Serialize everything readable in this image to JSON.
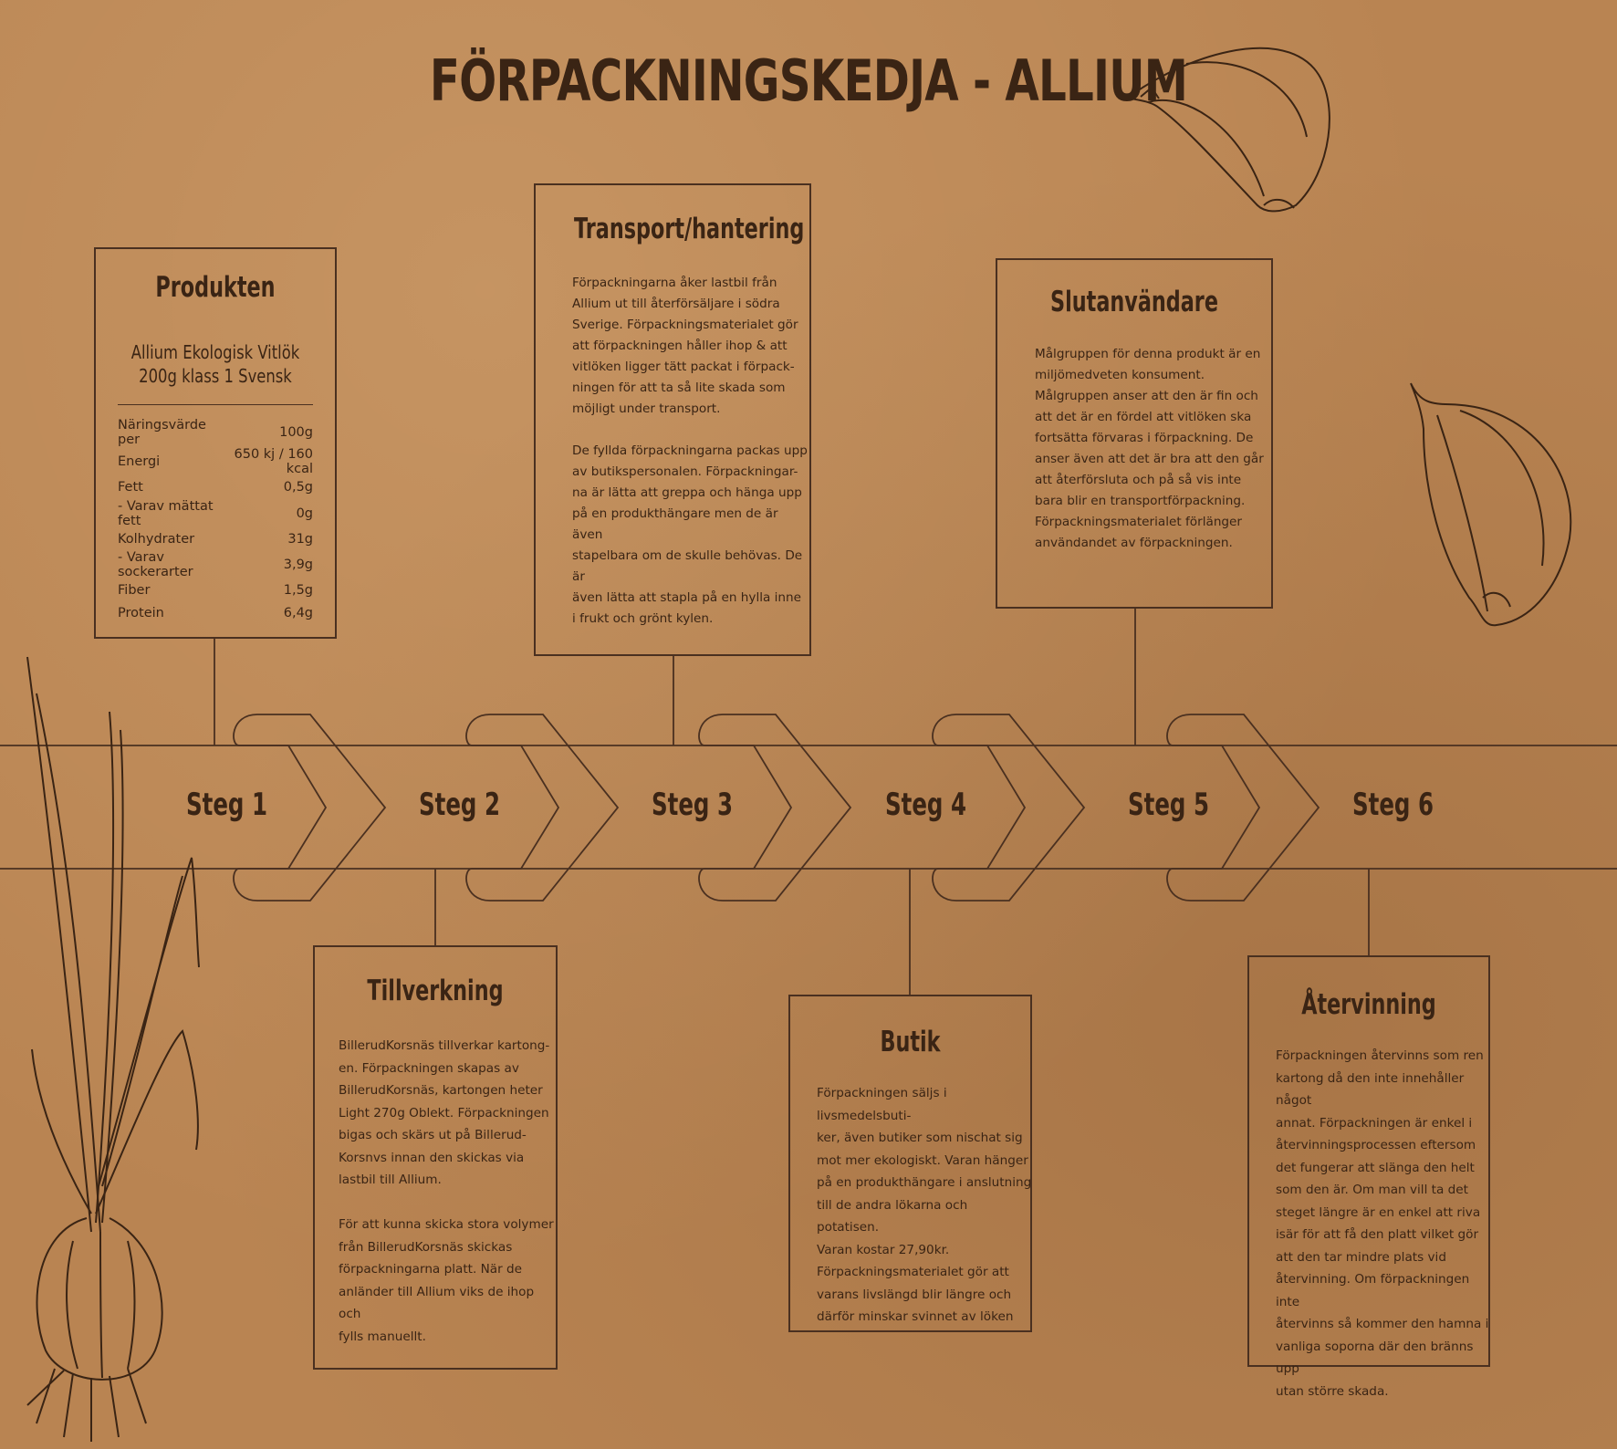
{
  "title": "FÖRPACKNINGSKEDJA - ALLIUM",
  "steps": [
    "Steg 1",
    "Steg 2",
    "Steg 3",
    "Steg 4",
    "Steg 5",
    "Steg 6"
  ],
  "produkten": {
    "heading": "Produkten",
    "product_name_line1": "Allium Ekologisk Vitlök",
    "product_name_line2": "200g klass 1 Svensk",
    "nutrition_header": {
      "label": "Näringsvärde per",
      "value": "100g"
    },
    "energy": {
      "label": "Energi",
      "value1": "650 kj / 160 kcal"
    },
    "rows": [
      {
        "label": "Fett",
        "value": "0,5g"
      },
      {
        "label": "- Varav mättat fett",
        "value": "0g"
      },
      {
        "label": "Kolhydrater",
        "value": "31g"
      },
      {
        "label": "- Varav sockerarter",
        "value": "3,9g"
      },
      {
        "label": "Fiber",
        "value": "1,5g"
      },
      {
        "label": "Protein",
        "value": "6,4g"
      }
    ]
  },
  "transport": {
    "heading": "Transport/hantering",
    "text": "Förpackningarna åker lastbil från\nAllium ut till återförsäljare i södra\nSverige. Förpackningsmaterialet gör\natt förpackningen håller ihop & att\nvitlöken ligger tätt packat i förpack-\nningen för att ta så lite skada som\nmöjligt under transport.\n\nDe fyllda förpackningarna packas upp\nav butikspersonalen. Förpackningar-\nna är lätta att greppa och hänga upp\npå en produkthängare men de är även\nstapelbara om de skulle behövas. De är\näven lätta att stapla på en hylla inne\ni frukt och grönt kylen."
  },
  "slutanvandare": {
    "heading": "Slutanvändare",
    "text": "Målgruppen för denna produkt  är en\nmiljömedveten konsument.\nMålgruppen anser att den är fin och\natt det är en fördel att vitlöken ska\nfortsätta förvaras i förpackning. De\nanser även att det är bra att den går\natt återförsluta och på så vis inte\nbara blir en transportförpackning.\nFörpackningsmaterialet förlänger\nanvändandet av förpackningen."
  },
  "tillverkning": {
    "heading": "Tillverkning",
    "text": "BillerudKorsnäs tillverkar kartong-\nen. Förpackningen skapas av\nBillerudKorsnäs, kartongen heter\nLight 270g Oblekt. Förpackningen\nbigas och skärs ut på Billerud-\nKorsnvs innan den skickas via\nlastbil till Allium.\n\nFör att kunna skicka stora volymer\nfrån BillerudKorsnäs skickas\nförpackningarna platt. När de\nanländer till Allium viks de ihop och\nfylls manuellt."
  },
  "butik": {
    "heading": "Butik",
    "text": "Förpackningen säljs i livsmedelsbuti-\nker, även butiker som nischat sig\nmot mer ekologiskt. Varan hänger\npå en produkthängare i anslutning\ntill de andra lökarna och potatisen.\nVaran kostar 27,90kr.\nFörpackningsmaterialet gör att\nvarans livslängd blir längre och\ndärför minskar svinnet av löken"
  },
  "atervinning": {
    "heading": "Återvinning",
    "text": "Förpackningen återvinns som ren\nkartong då den inte innehåller något\nannat. Förpackningen är enkel i\nåtervinningsprocessen eftersom\ndet fungerar att slänga den helt\nsom den är. Om man vill ta det\nsteget längre är en enkel att riva\nisär för att få den platt vilket gör\natt den tar mindre plats vid\nåtervinning. Om förpackningen inte\nåtervinns så kommer den hamna i\nvanliga soporna där den bränns upp\nutan större skada."
  },
  "colors": {
    "paper": "#b98452",
    "ink": "#3a2414"
  },
  "icons": [
    "garlic-clove-icon-top",
    "garlic-clove-icon-right",
    "garlic-plant-icon"
  ]
}
